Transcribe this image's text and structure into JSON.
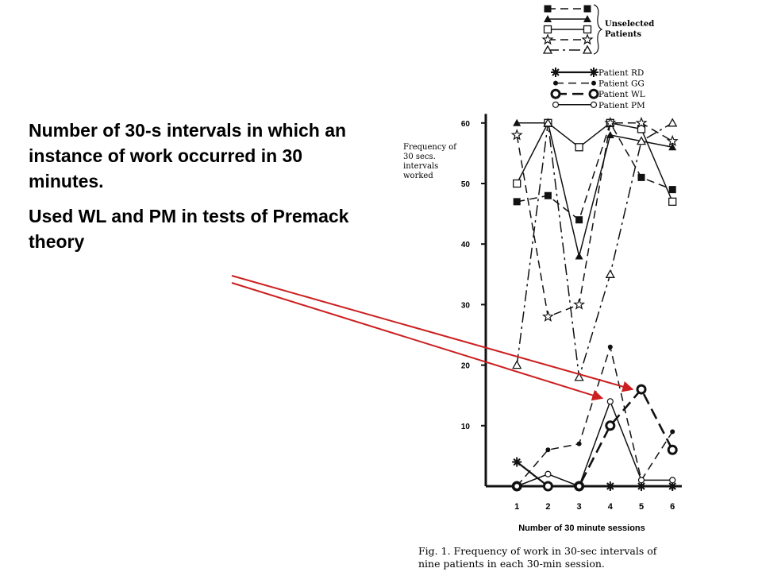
{
  "slide": {
    "paragraph1": "Number of 30-s intervals in which an instance of work occurred in 30 minutes.",
    "paragraph2": "Used WL and PM in tests of Premack theory"
  },
  "colors": {
    "arrow": "#cc1f1f",
    "ink": "#111111"
  },
  "chart_data": {
    "type": "line",
    "ylabel": "Frequency of 30 secs. intervals worked",
    "xlabel": "Number of 30 minute sessions",
    "caption": "Fig. 1. Frequency of work in 30-sec intervals of nine patients in each 30-min session.",
    "x": [
      1,
      2,
      3,
      4,
      5,
      6
    ],
    "xticks": [
      "1",
      "2",
      "3",
      "4",
      "5",
      "6"
    ],
    "yticks": [
      "10",
      "20",
      "30",
      "40",
      "50",
      "60"
    ],
    "ylim": [
      0,
      60
    ],
    "legend_group_label": "Unselected Patients",
    "series": [
      {
        "group": "unselected",
        "marker": "filled-square",
        "dash": "dash",
        "values": [
          47,
          48,
          44,
          60,
          51,
          49
        ]
      },
      {
        "group": "unselected",
        "marker": "filled-triangle",
        "dash": "solid",
        "values": [
          60,
          60,
          38,
          58,
          57,
          56
        ]
      },
      {
        "group": "unselected",
        "marker": "open-square",
        "dash": "solid",
        "values": [
          50,
          60,
          56,
          60,
          59,
          47
        ]
      },
      {
        "group": "unselected",
        "marker": "open-star",
        "dash": "dash",
        "values": [
          58,
          28,
          30,
          60,
          60,
          57
        ]
      },
      {
        "group": "unselected",
        "marker": "open-triangle",
        "dash": "dashdot",
        "values": [
          20,
          60,
          18,
          35,
          57,
          60
        ]
      },
      {
        "group": "selected",
        "name": "Patient RD",
        "marker": "cross-star",
        "dash": "solid",
        "values": [
          4,
          0,
          0,
          0,
          0,
          0
        ]
      },
      {
        "group": "selected",
        "name": "Patient GG",
        "marker": "small-dot",
        "dash": "dash",
        "values": [
          0,
          6,
          7,
          23,
          1,
          9
        ]
      },
      {
        "group": "selected",
        "name": "Patient WL",
        "marker": "bold-circle",
        "dash": "longdash",
        "values": [
          0,
          0,
          0,
          10,
          16,
          6
        ]
      },
      {
        "group": "selected",
        "name": "Patient PM",
        "marker": "open-circle",
        "dash": "solid",
        "values": [
          0,
          2,
          0,
          14,
          1,
          1
        ]
      }
    ],
    "annotation_arrows": [
      "Patient WL",
      "Patient PM"
    ]
  }
}
